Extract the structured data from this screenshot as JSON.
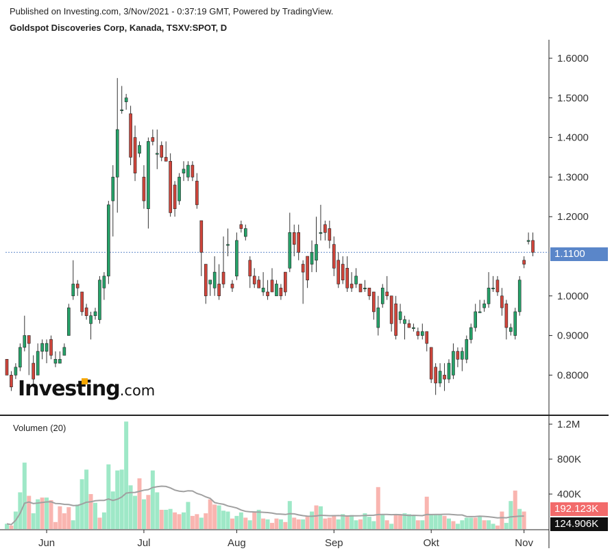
{
  "header": {
    "published": "Published on Investing.com, 3/Nov/2021 - 0:37:19 GMT, Powered by TradingView.",
    "title": "Goldspot Discoveries Corp, Kanada, TSXV:SPOT, D"
  },
  "logo": {
    "main": "Investing",
    "suffix": ".com"
  },
  "colors": {
    "up": "#26a269",
    "down": "#d0453b",
    "vol_up": "#9ee8c7",
    "vol_down": "#f9b5b0",
    "ma": "#a0a0a0",
    "last_line": "#5a86c9"
  },
  "chart_data": [
    {
      "type": "candlestick",
      "title": "Goldspot Discoveries Corp, Kanada, TSXV:SPOT, D",
      "ylim": [
        0.73,
        1.66
      ],
      "y_ticks": [
        "1.6000",
        "1.5000",
        "1.4000",
        "1.3000",
        "1.2000",
        "1.1100",
        "1.0000",
        "0.9000",
        "0.8000"
      ],
      "x_ticks": [
        "Jun",
        "Jul",
        "Aug",
        "Sep",
        "Okt",
        "Nov"
      ],
      "last_price": 1.11,
      "last_price_label": "1.1100",
      "candles": [
        [
          0.84,
          0.8,
          0.84,
          0.8
        ],
        [
          0.8,
          0.77,
          0.81,
          0.76
        ],
        [
          0.8,
          0.82,
          0.83,
          0.79
        ],
        [
          0.82,
          0.87,
          0.88,
          0.81
        ],
        [
          0.87,
          0.9,
          0.95,
          0.86
        ],
        [
          0.9,
          0.88,
          0.9,
          0.8
        ],
        [
          0.83,
          0.79,
          0.85,
          0.77
        ],
        [
          0.8,
          0.86,
          0.88,
          0.8
        ],
        [
          0.86,
          0.88,
          0.89,
          0.84
        ],
        [
          0.86,
          0.88,
          0.89,
          0.83
        ],
        [
          0.89,
          0.85,
          0.9,
          0.84
        ],
        [
          0.83,
          0.84,
          0.86,
          0.82
        ],
        [
          0.83,
          0.84,
          0.86,
          0.83
        ],
        [
          0.85,
          0.87,
          0.88,
          0.85
        ],
        [
          0.9,
          0.97,
          0.98,
          0.9
        ],
        [
          1.0,
          1.03,
          1.09,
          0.99
        ],
        [
          1.03,
          1.02,
          1.04,
          1.0
        ],
        [
          1.01,
          0.96,
          1.01,
          0.95
        ],
        [
          0.97,
          0.95,
          0.98,
          0.94
        ],
        [
          0.93,
          0.95,
          0.96,
          0.89
        ],
        [
          0.95,
          0.96,
          0.97,
          0.94
        ],
        [
          0.94,
          1.04,
          1.05,
          0.93
        ],
        [
          1.02,
          1.05,
          1.06,
          0.99
        ],
        [
          1.05,
          1.23,
          1.24,
          1.03
        ],
        [
          1.24,
          1.3,
          1.33,
          1.15
        ],
        [
          1.3,
          1.42,
          1.55,
          1.21
        ],
        [
          1.47,
          1.47,
          1.53,
          1.46
        ],
        [
          1.49,
          1.5,
          1.51,
          1.47
        ],
        [
          1.46,
          1.35,
          1.48,
          1.33
        ],
        [
          1.4,
          1.31,
          1.43,
          1.29
        ],
        [
          1.36,
          1.38,
          1.39,
          1.35
        ],
        [
          1.3,
          1.24,
          1.33,
          1.22
        ],
        [
          1.22,
          1.39,
          1.4,
          1.17
        ],
        [
          1.4,
          1.39,
          1.42,
          1.38
        ],
        [
          1.36,
          1.36,
          1.42,
          1.32
        ],
        [
          1.38,
          1.35,
          1.39,
          1.34
        ],
        [
          1.35,
          1.34,
          1.39,
          1.34
        ],
        [
          1.34,
          1.21,
          1.36,
          1.2
        ],
        [
          1.28,
          1.22,
          1.29,
          1.2
        ],
        [
          1.24,
          1.3,
          1.31,
          1.23
        ],
        [
          1.31,
          1.32,
          1.34,
          1.29
        ],
        [
          1.3,
          1.33,
          1.34,
          1.29
        ],
        [
          1.33,
          1.3,
          1.34,
          1.29
        ],
        [
          1.29,
          1.23,
          1.31,
          1.22
        ],
        [
          1.19,
          1.11,
          1.19,
          1.05
        ],
        [
          1.08,
          1.0,
          1.08,
          0.98
        ],
        [
          1.03,
          1.04,
          1.04,
          1.0
        ],
        [
          1.02,
          1.06,
          1.1,
          1.0
        ],
        [
          1.03,
          1.0,
          1.08,
          0.99
        ],
        [
          1.06,
          1.03,
          1.15,
          1.02
        ],
        [
          1.13,
          1.13,
          1.17,
          1.1
        ],
        [
          1.03,
          1.02,
          1.04,
          1.01
        ],
        [
          1.05,
          1.14,
          1.16,
          1.04
        ],
        [
          1.18,
          1.17,
          1.19,
          1.16
        ],
        [
          1.15,
          1.17,
          1.18,
          1.14
        ],
        [
          1.09,
          1.05,
          1.1,
          1.02
        ],
        [
          1.05,
          1.03,
          1.07,
          1.02
        ],
        [
          1.04,
          1.02,
          1.05,
          1.02
        ],
        [
          1.01,
          1.02,
          1.06,
          1.0
        ],
        [
          1.01,
          1.0,
          1.04,
          0.99
        ],
        [
          1.04,
          1.01,
          1.07,
          1.01
        ],
        [
          1.0,
          1.03,
          1.04,
          1.0
        ],
        [
          1.02,
          1.0,
          1.03,
          0.99
        ],
        [
          1.06,
          1.01,
          1.06,
          1.0
        ],
        [
          1.07,
          1.16,
          1.21,
          1.06
        ],
        [
          1.16,
          1.13,
          1.18,
          1.1
        ],
        [
          1.16,
          1.11,
          1.18,
          1.09
        ],
        [
          1.08,
          1.06,
          1.09,
          0.98
        ],
        [
          1.1,
          1.04,
          1.1,
          1.02
        ],
        [
          1.08,
          1.11,
          1.14,
          1.06
        ],
        [
          1.09,
          1.13,
          1.2,
          1.06
        ],
        [
          1.16,
          1.16,
          1.23,
          1.14
        ],
        [
          1.18,
          1.16,
          1.19,
          1.14
        ],
        [
          1.17,
          1.14,
          1.19,
          1.12
        ],
        [
          1.13,
          1.07,
          1.15,
          1.05
        ],
        [
          1.09,
          1.03,
          1.11,
          1.02
        ],
        [
          1.08,
          1.04,
          1.1,
          1.03
        ],
        [
          1.07,
          1.02,
          1.1,
          1.01
        ],
        [
          1.03,
          1.02,
          1.06,
          1.01
        ],
        [
          1.03,
          1.05,
          1.07,
          1.02
        ],
        [
          1.03,
          1.01,
          1.03,
          1.01
        ],
        [
          1.02,
          1.02,
          1.04,
          1.01
        ],
        [
          1.02,
          1.0,
          1.02,
          0.99
        ],
        [
          1.01,
          0.96,
          1.01,
          0.94
        ],
        [
          0.92,
          0.97,
          1.0,
          0.9
        ],
        [
          0.98,
          1.02,
          1.03,
          0.97
        ],
        [
          1.01,
          1.0,
          1.05,
          0.99
        ],
        [
          1.0,
          0.93,
          1.0,
          0.91
        ],
        [
          0.98,
          0.9,
          1.0,
          0.89
        ],
        [
          0.94,
          0.96,
          0.98,
          0.93
        ],
        [
          0.93,
          0.94,
          0.95,
          0.89
        ],
        [
          0.93,
          0.92,
          0.94,
          0.92
        ],
        [
          0.92,
          0.92,
          0.93,
          0.91
        ],
        [
          0.91,
          0.9,
          0.92,
          0.89
        ],
        [
          0.9,
          0.91,
          0.93,
          0.89
        ],
        [
          0.91,
          0.88,
          0.91,
          0.86
        ],
        [
          0.87,
          0.79,
          0.87,
          0.78
        ],
        [
          0.82,
          0.78,
          0.83,
          0.75
        ],
        [
          0.78,
          0.81,
          0.83,
          0.77
        ],
        [
          0.8,
          0.79,
          0.83,
          0.76
        ],
        [
          0.79,
          0.83,
          0.84,
          0.78
        ],
        [
          0.8,
          0.86,
          0.88,
          0.79
        ],
        [
          0.86,
          0.84,
          0.87,
          0.82
        ],
        [
          0.84,
          0.86,
          0.87,
          0.81
        ],
        [
          0.84,
          0.89,
          0.9,
          0.83
        ],
        [
          0.89,
          0.92,
          0.93,
          0.88
        ],
        [
          0.92,
          0.96,
          0.98,
          0.91
        ],
        [
          0.96,
          0.96,
          0.99,
          0.96
        ],
        [
          0.97,
          0.98,
          0.99,
          0.96
        ],
        [
          0.98,
          1.02,
          1.06,
          0.97
        ],
        [
          1.02,
          1.02,
          1.05,
          1.01
        ],
        [
          1.04,
          1.01,
          1.05,
          1.0
        ],
        [
          1.0,
          0.97,
          1.02,
          0.95
        ],
        [
          0.98,
          0.92,
          0.99,
          0.89
        ],
        [
          0.91,
          0.92,
          0.93,
          0.9
        ],
        [
          0.9,
          0.96,
          0.97,
          0.89
        ],
        [
          0.96,
          1.04,
          1.05,
          0.95
        ],
        [
          1.09,
          1.08,
          1.1,
          1.07
        ],
        [
          1.14,
          1.14,
          1.16,
          1.13
        ],
        [
          1.14,
          1.11,
          1.16,
          1.1
        ]
      ]
    },
    {
      "type": "bar",
      "title": "Volumen (20)",
      "ylim": [
        0,
        1300
      ],
      "y_ticks": [
        "1.2M",
        "800K",
        "400K"
      ],
      "tag_high": "192.123K",
      "tag_low": "124.906K",
      "volumes": [
        [
          60,
          "u"
        ],
        [
          40,
          "d"
        ],
        [
          200,
          "u"
        ],
        [
          420,
          "u"
        ],
        [
          760,
          "u"
        ],
        [
          380,
          "d"
        ],
        [
          180,
          "u"
        ],
        [
          340,
          "u"
        ],
        [
          360,
          "d"
        ],
        [
          360,
          "u"
        ],
        [
          330,
          "d"
        ],
        [
          80,
          "d"
        ],
        [
          260,
          "d"
        ],
        [
          180,
          "d"
        ],
        [
          250,
          "d"
        ],
        [
          100,
          "u"
        ],
        [
          280,
          "u"
        ],
        [
          570,
          "u"
        ],
        [
          680,
          "u"
        ],
        [
          400,
          "d"
        ],
        [
          300,
          "u"
        ],
        [
          130,
          "d"
        ],
        [
          190,
          "u"
        ],
        [
          740,
          "u"
        ],
        [
          430,
          "u"
        ],
        [
          670,
          "u"
        ],
        [
          680,
          "u"
        ],
        [
          1230,
          "u"
        ],
        [
          500,
          "u"
        ],
        [
          380,
          "u"
        ],
        [
          580,
          "d"
        ],
        [
          340,
          "u"
        ],
        [
          390,
          "d"
        ],
        [
          670,
          "u"
        ],
        [
          420,
          "u"
        ],
        [
          220,
          "d"
        ],
        [
          220,
          "u"
        ],
        [
          230,
          "u"
        ],
        [
          190,
          "d"
        ],
        [
          170,
          "d"
        ],
        [
          190,
          "u"
        ],
        [
          310,
          "u"
        ],
        [
          150,
          "d"
        ],
        [
          170,
          "d"
        ],
        [
          130,
          "u"
        ],
        [
          180,
          "d"
        ],
        [
          340,
          "d"
        ],
        [
          280,
          "d"
        ],
        [
          270,
          "u"
        ],
        [
          210,
          "u"
        ],
        [
          200,
          "u"
        ],
        [
          120,
          "d"
        ],
        [
          150,
          "u"
        ],
        [
          190,
          "u"
        ],
        [
          130,
          "d"
        ],
        [
          100,
          "u"
        ],
        [
          190,
          "d"
        ],
        [
          220,
          "u"
        ],
        [
          120,
          "d"
        ],
        [
          110,
          "u"
        ],
        [
          70,
          "d"
        ],
        [
          120,
          "d"
        ],
        [
          110,
          "u"
        ],
        [
          80,
          "d"
        ],
        [
          320,
          "u"
        ],
        [
          130,
          "d"
        ],
        [
          110,
          "d"
        ],
        [
          110,
          "u"
        ],
        [
          140,
          "d"
        ],
        [
          200,
          "u"
        ],
        [
          270,
          "d"
        ],
        [
          260,
          "u"
        ],
        [
          120,
          "d"
        ],
        [
          130,
          "d"
        ],
        [
          150,
          "d"
        ],
        [
          110,
          "u"
        ],
        [
          170,
          "u"
        ],
        [
          150,
          "d"
        ],
        [
          160,
          "u"
        ],
        [
          100,
          "u"
        ],
        [
          110,
          "d"
        ],
        [
          180,
          "u"
        ],
        [
          140,
          "u"
        ],
        [
          90,
          "u"
        ],
        [
          480,
          "d"
        ],
        [
          160,
          "u"
        ],
        [
          100,
          "d"
        ],
        [
          60,
          "u"
        ],
        [
          170,
          "d"
        ],
        [
          170,
          "d"
        ],
        [
          180,
          "u"
        ],
        [
          170,
          "u"
        ],
        [
          160,
          "u"
        ],
        [
          100,
          "d"
        ],
        [
          100,
          "u"
        ],
        [
          370,
          "d"
        ],
        [
          160,
          "u"
        ],
        [
          160,
          "u"
        ],
        [
          160,
          "u"
        ],
        [
          150,
          "d"
        ],
        [
          120,
          "u"
        ],
        [
          90,
          "d"
        ],
        [
          60,
          "u"
        ],
        [
          100,
          "u"
        ],
        [
          130,
          "u"
        ],
        [
          130,
          "u"
        ],
        [
          130,
          "d"
        ],
        [
          140,
          "u"
        ],
        [
          100,
          "d"
        ],
        [
          100,
          "u"
        ],
        [
          60,
          "u"
        ],
        [
          40,
          "d"
        ],
        [
          200,
          "d"
        ],
        [
          70,
          "u"
        ],
        [
          320,
          "u"
        ],
        [
          440,
          "d"
        ],
        [
          230,
          "u"
        ],
        [
          200,
          "d"
        ]
      ]
    }
  ]
}
